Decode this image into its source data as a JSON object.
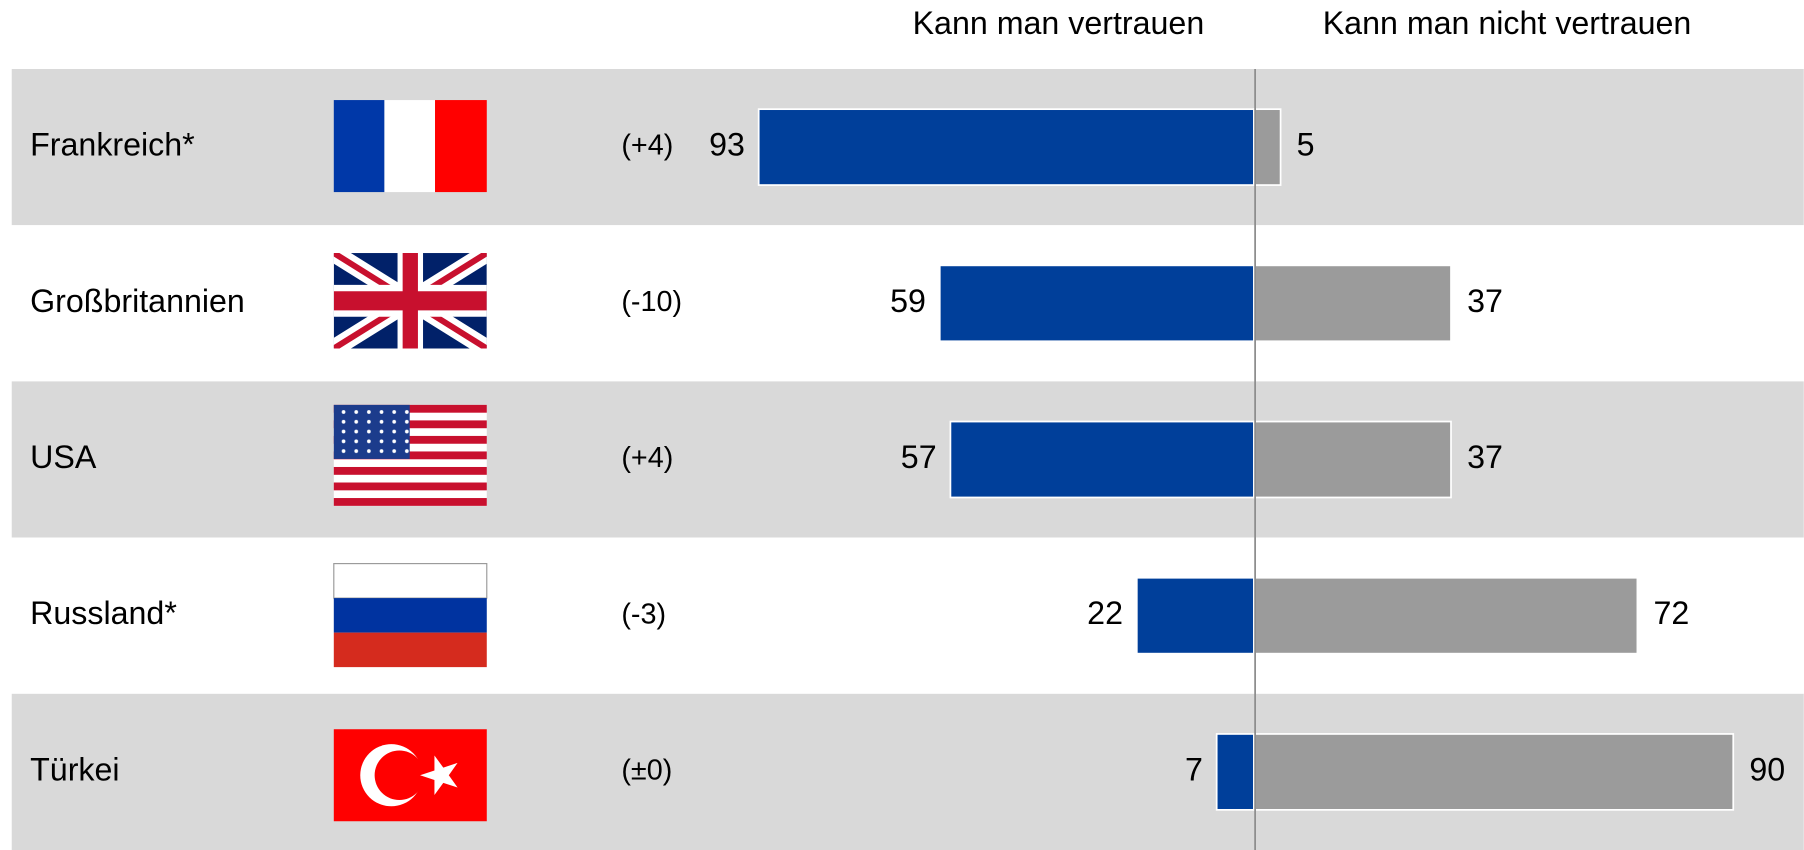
{
  "chart_data": {
    "type": "diverging-bar",
    "categories": [
      "Frankreich*",
      "Großbritannien",
      "USA",
      "Russland*",
      "Türkei"
    ],
    "changes": [
      "(+4)",
      "(-10)",
      "(+4)",
      "(-3)",
      "(±0)"
    ],
    "series": [
      {
        "name": "Kann man vertrauen",
        "color": "#003f9a",
        "values": [
          93,
          59,
          57,
          22,
          7
        ]
      },
      {
        "name": "Kann man nicht vertrauen",
        "color": "#9b9b9b",
        "values": [
          5,
          37,
          37,
          72,
          90
        ]
      }
    ]
  }
}
